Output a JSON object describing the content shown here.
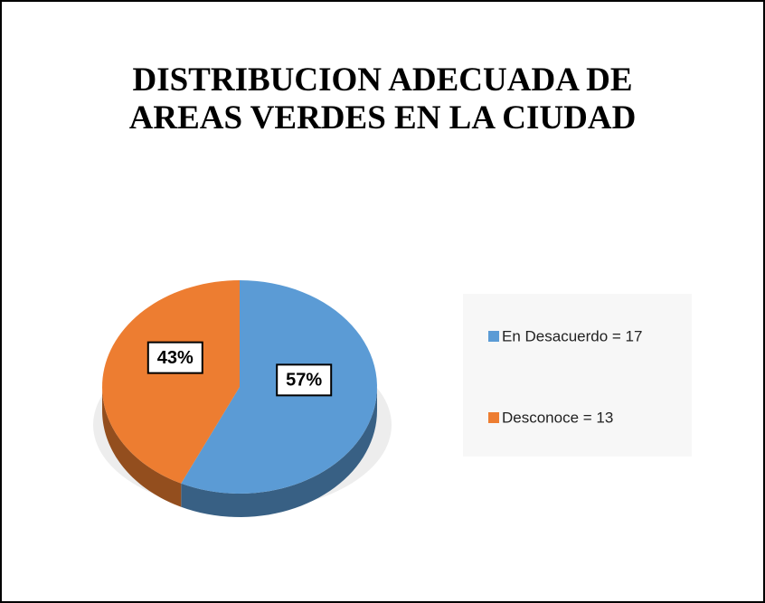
{
  "chart_data": {
    "type": "pie",
    "title": "DISTRIBUCION ADECUADA DE AREAS VERDES EN LA CIUDAD",
    "series": [
      {
        "name": "En Desacuerdo = 17",
        "color": "#5b9bd5",
        "values": [
          57
        ],
        "value_labels": [
          "57%"
        ]
      },
      {
        "name": "Desconoce = 13",
        "color": "#ed7d31",
        "values": [
          43
        ],
        "value_labels": [
          "43%"
        ]
      }
    ],
    "legend": "right"
  }
}
